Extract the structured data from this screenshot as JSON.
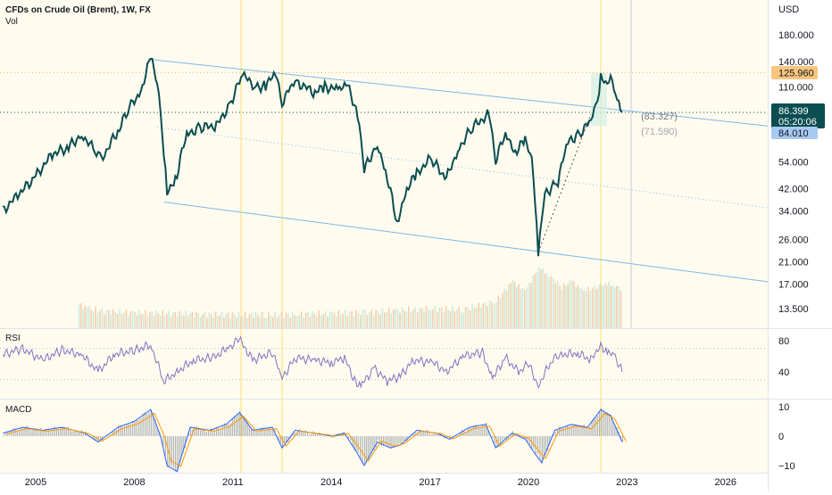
{
  "header": {
    "symbol": "CFDs on Crude Oil (Brent), 1W, FX",
    "vol_label": "Vol",
    "currency": "USD"
  },
  "price_badges": {
    "high": "125.960",
    "last": "86.399",
    "countdown": "05:20:06",
    "low": "84.010",
    "target1": "(83.327)",
    "target2": "(71.590)"
  },
  "panes": {
    "rsi_label": "RSI",
    "macd_label": "MACD"
  },
  "colors": {
    "price_line": "#0b4d50",
    "channel": "#7fb6e6",
    "vertical_marker": "#ffe066",
    "rsi_line": "#7e72c4",
    "high_badge": "#f7c67e",
    "last_badge": "#0b4d50",
    "low_badge": "#a7c9f2"
  },
  "chart_data": [
    {
      "type": "line",
      "name": "price",
      "y_scale": "log",
      "ylim": [
        12,
        240
      ],
      "x_ticks": [
        "2005",
        "2008",
        "2011",
        "2014",
        "2017",
        "2020",
        "2023",
        "2026"
      ],
      "y_ticks": [
        "180.000",
        "140.000",
        "110.000",
        "54.000",
        "42.000",
        "34.000",
        "26.000",
        "21.000",
        "17.000",
        "13.500"
      ],
      "points": [
        [
          2004.0,
          34
        ],
        [
          2004.5,
          40
        ],
        [
          2005.0,
          47
        ],
        [
          2005.5,
          58
        ],
        [
          2006.0,
          62
        ],
        [
          2006.4,
          70
        ],
        [
          2006.8,
          60
        ],
        [
          2007.0,
          55
        ],
        [
          2007.5,
          72
        ],
        [
          2007.9,
          92
        ],
        [
          2008.2,
          105
        ],
        [
          2008.5,
          143
        ],
        [
          2008.7,
          115
        ],
        [
          2008.9,
          60
        ],
        [
          2009.0,
          40
        ],
        [
          2009.3,
          48
        ],
        [
          2009.6,
          70
        ],
        [
          2010.0,
          75
        ],
        [
          2010.5,
          76
        ],
        [
          2010.9,
          92
        ],
        [
          2011.3,
          123
        ],
        [
          2011.7,
          110
        ],
        [
          2012.0,
          112
        ],
        [
          2012.3,
          124
        ],
        [
          2012.5,
          95
        ],
        [
          2012.8,
          112
        ],
        [
          2013.0,
          114
        ],
        [
          2013.5,
          104
        ],
        [
          2013.8,
          110
        ],
        [
          2014.2,
          108
        ],
        [
          2014.5,
          110
        ],
        [
          2014.8,
          85
        ],
        [
          2015.0,
          50
        ],
        [
          2015.4,
          64
        ],
        [
          2015.7,
          46
        ],
        [
          2016.0,
          30
        ],
        [
          2016.3,
          42
        ],
        [
          2016.6,
          48
        ],
        [
          2017.0,
          56
        ],
        [
          2017.5,
          46
        ],
        [
          2017.9,
          62
        ],
        [
          2018.3,
          75
        ],
        [
          2018.8,
          85
        ],
        [
          2019.0,
          55
        ],
        [
          2019.3,
          70
        ],
        [
          2019.6,
          60
        ],
        [
          2019.9,
          66
        ],
        [
          2020.1,
          55
        ],
        [
          2020.3,
          22
        ],
        [
          2020.5,
          40
        ],
        [
          2020.9,
          45
        ],
        [
          2021.2,
          65
        ],
        [
          2021.6,
          72
        ],
        [
          2021.9,
          80
        ],
        [
          2022.1,
          95
        ],
        [
          2022.2,
          122
        ],
        [
          2022.4,
          108
        ],
        [
          2022.5,
          122
        ],
        [
          2022.7,
          95
        ],
        [
          2022.85,
          86.4
        ]
      ],
      "volume": [
        [
          2006.3,
          14
        ],
        [
          2006.6,
          13.5
        ],
        [
          2007.0,
          13.2
        ],
        [
          2008.0,
          13.0
        ],
        [
          2010.0,
          12.8
        ],
        [
          2012.0,
          12.7
        ],
        [
          2013.0,
          12.8
        ],
        [
          2014.0,
          12.9
        ],
        [
          2015.0,
          13.0
        ],
        [
          2016.0,
          13.3
        ],
        [
          2017.0,
          13.5
        ],
        [
          2018.0,
          13.4
        ],
        [
          2019.0,
          14.5
        ],
        [
          2019.5,
          17.5
        ],
        [
          2019.8,
          16
        ],
        [
          2020.0,
          17
        ],
        [
          2020.3,
          20
        ],
        [
          2020.6,
          18.5
        ],
        [
          2021.0,
          16.5
        ],
        [
          2021.3,
          17.5
        ],
        [
          2021.6,
          16.0
        ],
        [
          2022.0,
          16.5
        ],
        [
          2022.3,
          17.2
        ],
        [
          2022.6,
          16.8
        ],
        [
          2022.85,
          16.2
        ]
      ]
    },
    {
      "type": "line",
      "name": "RSI",
      "ylim": [
        15,
        90
      ],
      "y_ticks": [
        "80",
        "40"
      ],
      "guide_levels": [
        70,
        30
      ],
      "points": [
        [
          2004.0,
          62
        ],
        [
          2004.6,
          70
        ],
        [
          2005.2,
          55
        ],
        [
          2005.8,
          68
        ],
        [
          2006.4,
          62
        ],
        [
          2006.9,
          40
        ],
        [
          2007.4,
          63
        ],
        [
          2008.0,
          67
        ],
        [
          2008.5,
          75
        ],
        [
          2008.9,
          28
        ],
        [
          2009.3,
          40
        ],
        [
          2009.8,
          55
        ],
        [
          2010.4,
          58
        ],
        [
          2010.9,
          72
        ],
        [
          2011.2,
          82
        ],
        [
          2011.6,
          55
        ],
        [
          2012.2,
          65
        ],
        [
          2012.5,
          32
        ],
        [
          2012.9,
          58
        ],
        [
          2013.5,
          55
        ],
        [
          2014.0,
          52
        ],
        [
          2014.4,
          58
        ],
        [
          2014.7,
          30
        ],
        [
          2014.9,
          22
        ],
        [
          2015.3,
          45
        ],
        [
          2015.7,
          28
        ],
        [
          2016.1,
          35
        ],
        [
          2016.5,
          55
        ],
        [
          2017.1,
          52
        ],
        [
          2017.5,
          40
        ],
        [
          2018.0,
          60
        ],
        [
          2018.6,
          65
        ],
        [
          2018.9,
          32
        ],
        [
          2019.3,
          58
        ],
        [
          2019.7,
          40
        ],
        [
          2020.0,
          50
        ],
        [
          2020.3,
          22
        ],
        [
          2020.7,
          55
        ],
        [
          2021.0,
          62
        ],
        [
          2021.5,
          64
        ],
        [
          2021.9,
          55
        ],
        [
          2022.2,
          76
        ],
        [
          2022.4,
          62
        ],
        [
          2022.6,
          64
        ],
        [
          2022.85,
          40
        ]
      ]
    },
    {
      "type": "line",
      "name": "MACD",
      "ylim": [
        -12,
        12
      ],
      "y_ticks": [
        "10",
        "0",
        "−10"
      ],
      "points": [
        [
          2004.0,
          1
        ],
        [
          2004.6,
          3
        ],
        [
          2005.2,
          2
        ],
        [
          2005.8,
          3
        ],
        [
          2006.5,
          1
        ],
        [
          2006.9,
          -2
        ],
        [
          2007.5,
          3
        ],
        [
          2008.0,
          5
        ],
        [
          2008.5,
          9
        ],
        [
          2008.8,
          0
        ],
        [
          2009.0,
          -10
        ],
        [
          2009.3,
          -12
        ],
        [
          2009.7,
          3
        ],
        [
          2010.3,
          2
        ],
        [
          2010.8,
          4
        ],
        [
          2011.2,
          8
        ],
        [
          2011.6,
          2
        ],
        [
          2012.2,
          3
        ],
        [
          2012.5,
          -4
        ],
        [
          2012.9,
          2
        ],
        [
          2013.5,
          1
        ],
        [
          2014.0,
          0
        ],
        [
          2014.4,
          1
        ],
        [
          2014.8,
          -6
        ],
        [
          2015.0,
          -10
        ],
        [
          2015.4,
          -2
        ],
        [
          2015.8,
          -4
        ],
        [
          2016.1,
          -3
        ],
        [
          2016.6,
          2
        ],
        [
          2017.2,
          1
        ],
        [
          2017.6,
          -1
        ],
        [
          2018.2,
          3
        ],
        [
          2018.7,
          4
        ],
        [
          2019.0,
          -4
        ],
        [
          2019.5,
          1
        ],
        [
          2019.9,
          -1
        ],
        [
          2020.2,
          -6
        ],
        [
          2020.4,
          -9
        ],
        [
          2020.8,
          2
        ],
        [
          2021.3,
          4
        ],
        [
          2021.8,
          3
        ],
        [
          2022.2,
          9
        ],
        [
          2022.5,
          7
        ],
        [
          2022.85,
          -2
        ]
      ]
    }
  ]
}
